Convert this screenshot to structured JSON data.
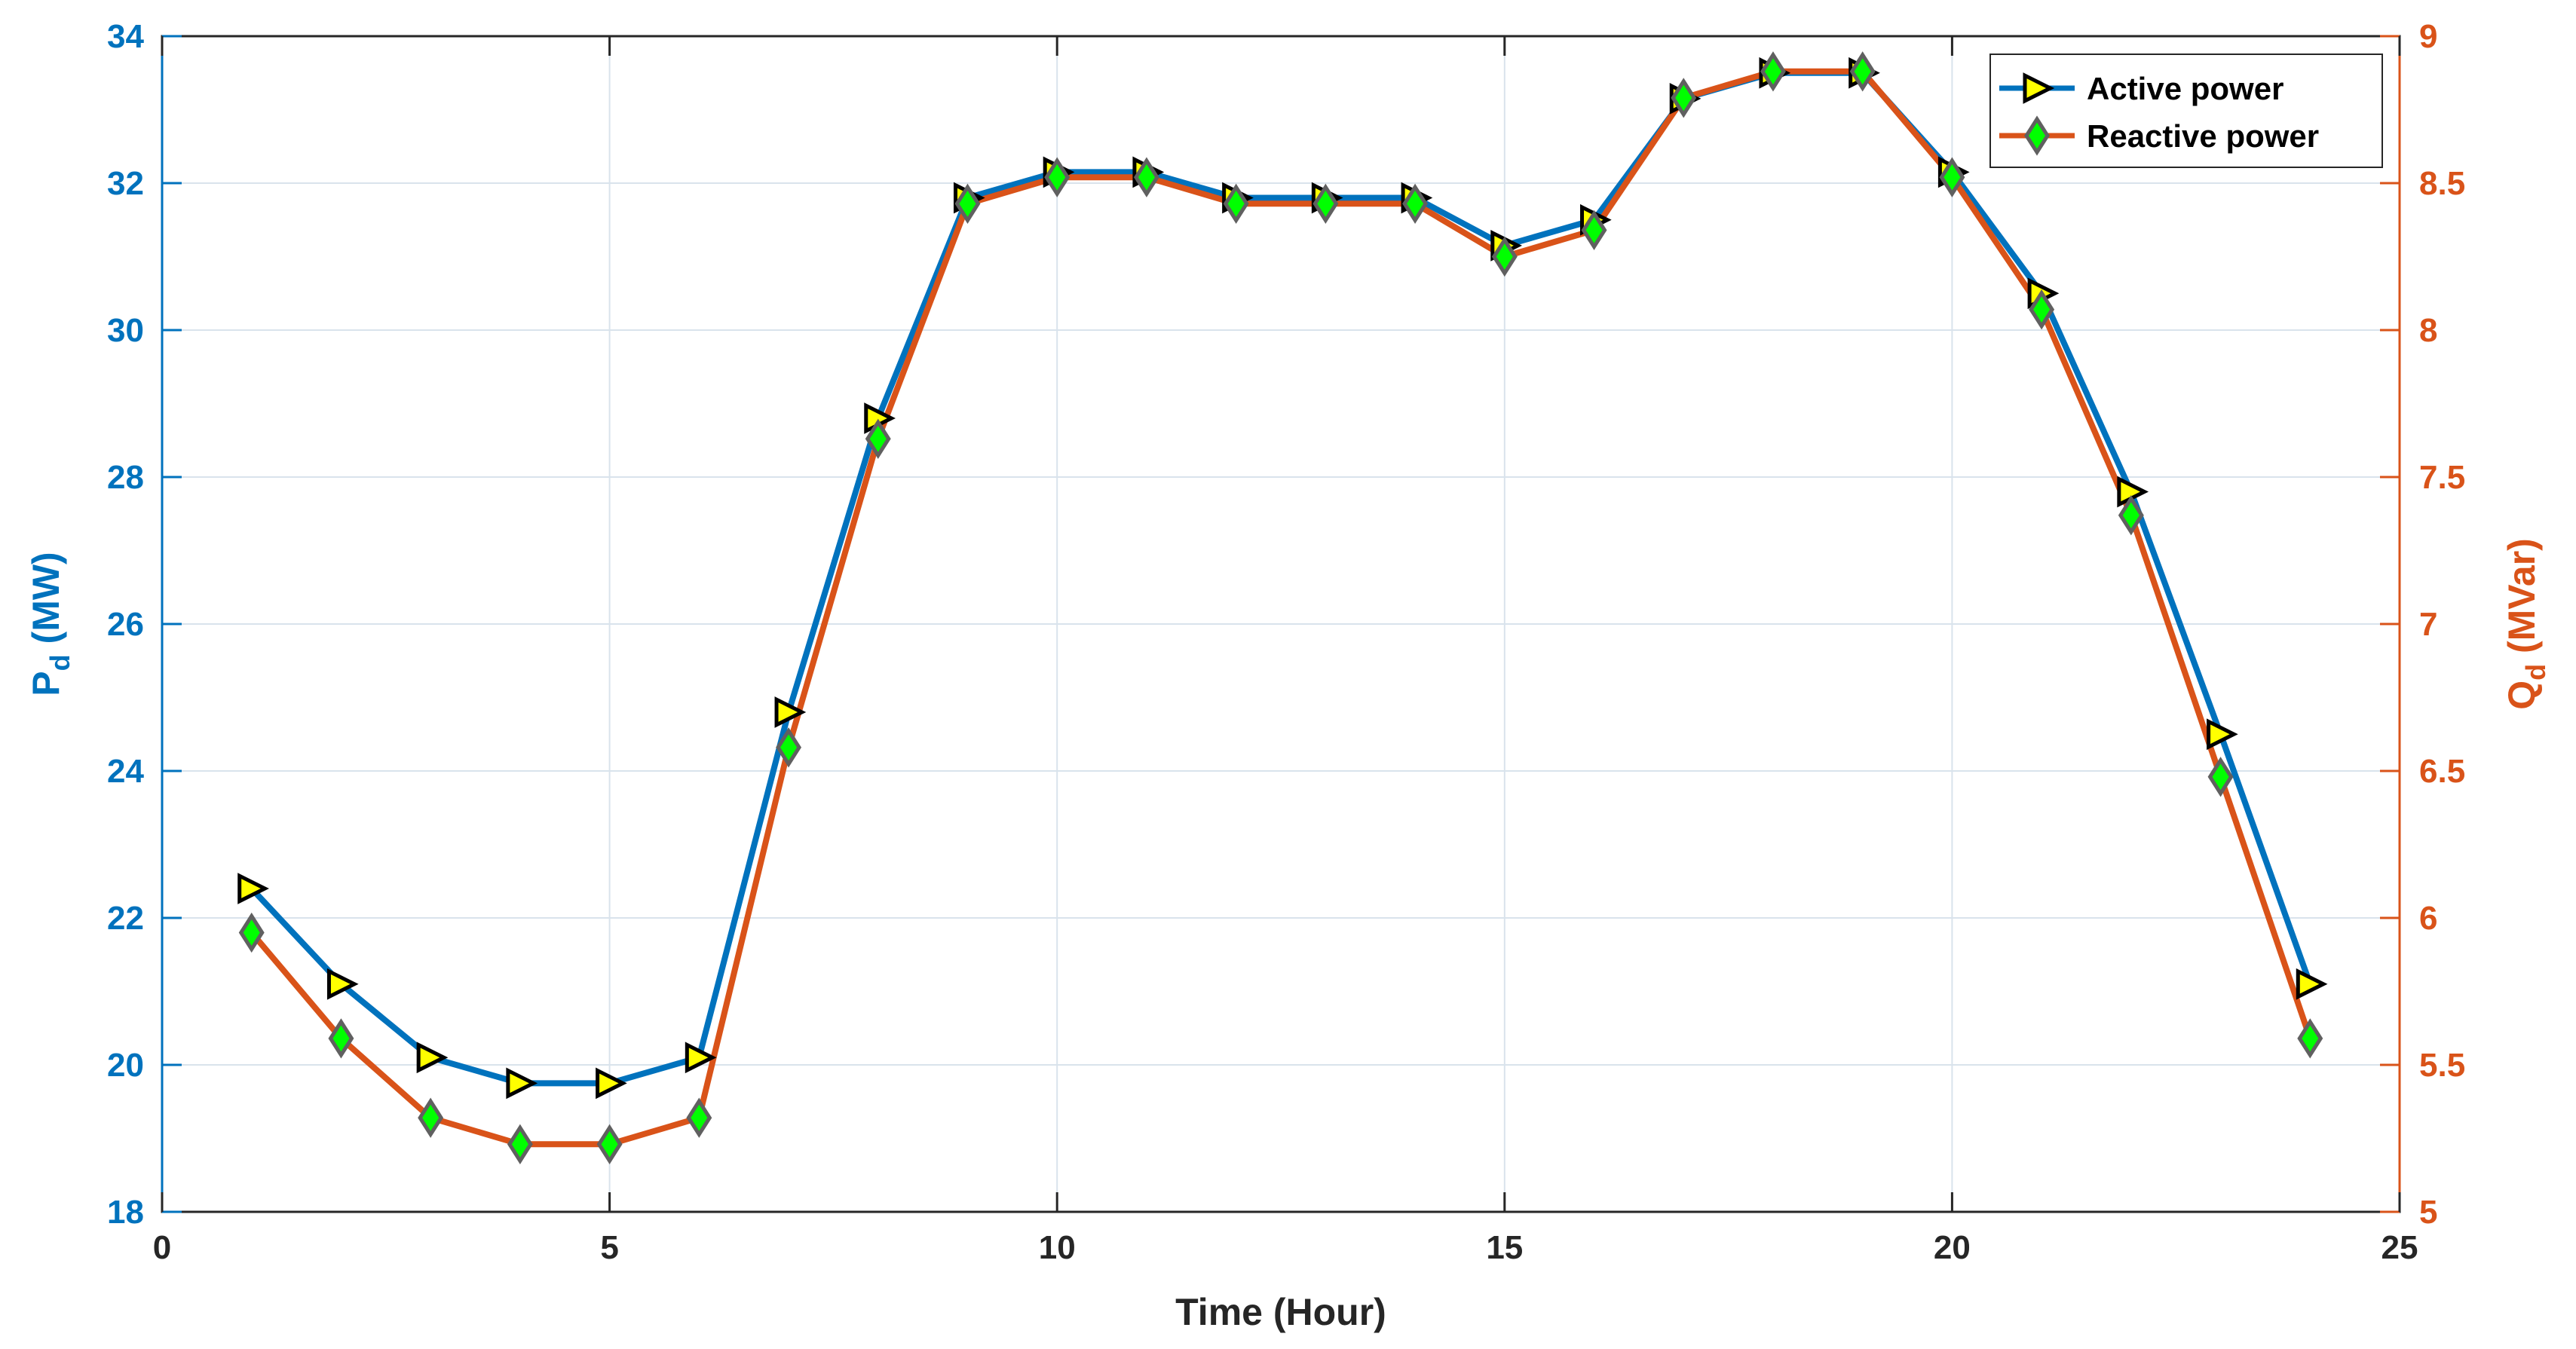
{
  "chart_data": {
    "type": "line",
    "xlabel": "Time (Hour)",
    "ylabel_left": {
      "main": "P",
      "sub": "d",
      "unit": " (MW)"
    },
    "ylabel_right": {
      "main": "Q",
      "sub": "d",
      "unit": " (MVar)"
    },
    "xlim": [
      0,
      25
    ],
    "xticks": [
      0,
      5,
      10,
      15,
      20,
      25
    ],
    "ylim_left": [
      18,
      34
    ],
    "yticks_left": [
      18,
      20,
      22,
      24,
      26,
      28,
      30,
      32,
      34
    ],
    "ylim_right": [
      5,
      9
    ],
    "yticks_right": [
      "5",
      "5.5",
      "6",
      "6.5",
      "7",
      "7.5",
      "8",
      "8.5",
      "9"
    ],
    "grid": true,
    "legend_position": "top-right",
    "x": [
      1,
      2,
      3,
      4,
      5,
      6,
      7,
      8,
      9,
      10,
      11,
      12,
      13,
      14,
      15,
      16,
      17,
      18,
      19,
      20,
      21,
      22,
      23,
      24
    ],
    "series": [
      {
        "name": "Active power",
        "axis": "left",
        "color": "#0072BD",
        "marker": "triangle-right",
        "marker_fill": "#FFFF00",
        "marker_edge": "#000000",
        "values": [
          22.4,
          21.1,
          20.1,
          19.75,
          19.75,
          20.1,
          24.8,
          28.8,
          31.8,
          32.15,
          32.15,
          31.8,
          31.8,
          31.8,
          31.15,
          31.5,
          33.15,
          33.5,
          33.5,
          32.15,
          30.5,
          27.8,
          24.5,
          21.1
        ]
      },
      {
        "name": "Reactive power",
        "axis": "right",
        "color": "#D95319",
        "marker": "diamond",
        "marker_fill": "#00FF00",
        "marker_edge": "#606060",
        "values": [
          5.95,
          5.59,
          5.32,
          5.23,
          5.23,
          5.32,
          6.58,
          7.63,
          8.43,
          8.52,
          8.52,
          8.43,
          8.43,
          8.43,
          8.25,
          8.34,
          8.79,
          8.88,
          8.88,
          8.52,
          8.07,
          7.37,
          6.48,
          5.59
        ]
      }
    ]
  }
}
